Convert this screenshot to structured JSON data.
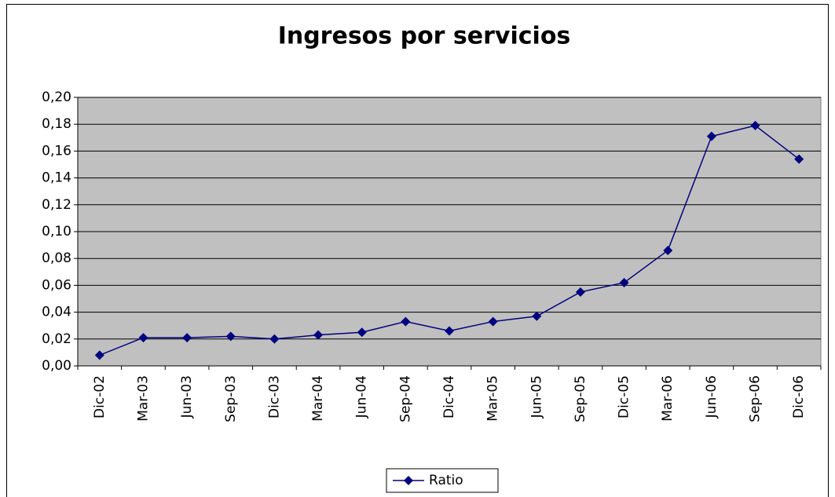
{
  "chart_data": {
    "type": "line",
    "title": "Ingresos por servicios",
    "categories": [
      "Dic-02",
      "Mar-03",
      "Jun-03",
      "Sep-03",
      "Dic-03",
      "Mar-04",
      "Jun-04",
      "Sep-04",
      "Dic-04",
      "Mar-05",
      "Jun-05",
      "Sep-05",
      "Dic-05",
      "Mar-06",
      "Jun-06",
      "Sep-06",
      "Dic-06"
    ],
    "series": [
      {
        "name": "Ratio",
        "color": "#000080",
        "values": [
          0.008,
          0.021,
          0.021,
          0.022,
          0.02,
          0.023,
          0.025,
          0.033,
          0.026,
          0.033,
          0.037,
          0.055,
          0.062,
          0.086,
          0.171,
          0.179,
          0.154
        ]
      }
    ],
    "ylim": [
      0,
      0.2
    ],
    "yticks": [
      {
        "value": 0,
        "label": "0,00"
      },
      {
        "value": 0.02,
        "label": "0,02"
      },
      {
        "value": 0.04,
        "label": "0,04"
      },
      {
        "value": 0.06,
        "label": "0,06"
      },
      {
        "value": 0.08,
        "label": "0,08"
      },
      {
        "value": 0.1,
        "label": "0,10"
      },
      {
        "value": 0.12,
        "label": "0,12"
      },
      {
        "value": 0.14,
        "label": "0,14"
      },
      {
        "value": 0.16,
        "label": "0,16"
      },
      {
        "value": 0.18,
        "label": "0,18"
      },
      {
        "value": 0.2,
        "label": "0,20"
      }
    ],
    "grid": true,
    "legend": "bottom"
  }
}
